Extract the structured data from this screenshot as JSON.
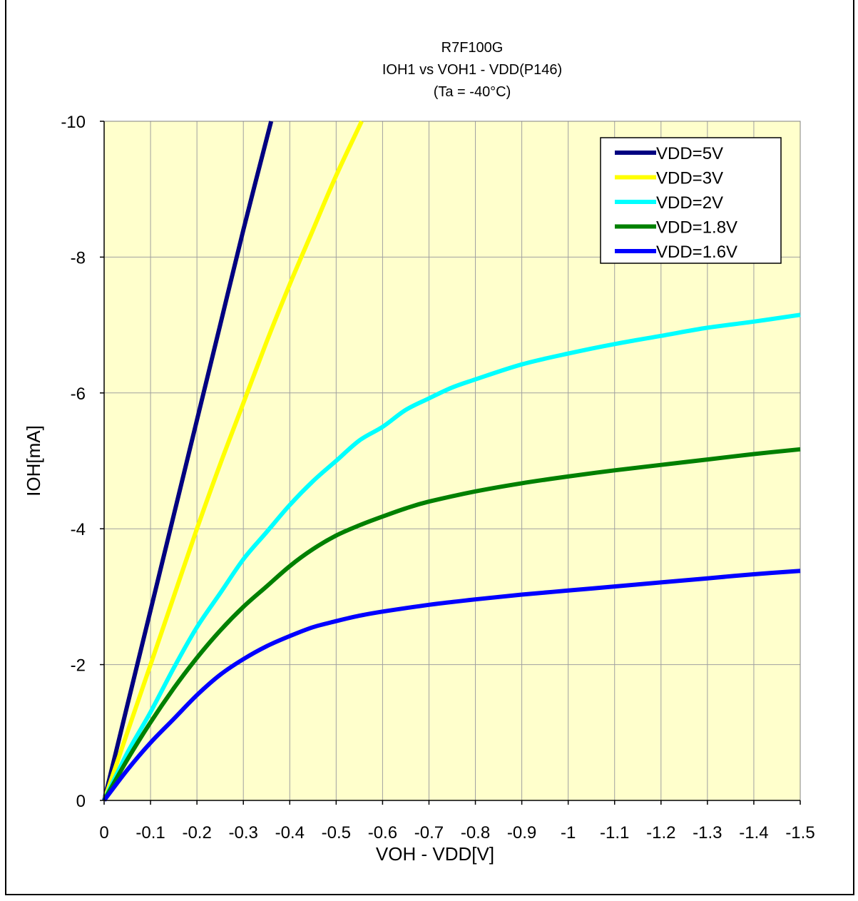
{
  "chart_data": {
    "type": "line",
    "title": "R7F100G",
    "subtitle": "IOH1 vs VOH1  - VDD(P146)",
    "condition": "(Ta =  -40°C)",
    "xlabel": "VOH - VDD[V]",
    "ylabel": "IOH[mA]",
    "xlim": [
      0,
      -1.5
    ],
    "ylim": [
      0,
      -10
    ],
    "xticks": [
      0,
      -0.1,
      -0.2,
      -0.3,
      -0.4,
      -0.5,
      -0.6,
      -0.7,
      -0.8,
      -0.9,
      -1,
      -1.1,
      -1.2,
      -1.3,
      -1.4,
      -1.5
    ],
    "xtick_labels": [
      "0",
      "-0.1",
      "-0.2",
      "-0.3",
      "-0.4",
      "-0.5",
      "-0.6",
      "-0.7",
      "-0.8",
      "-0.9",
      "-1",
      "-1.1",
      "-1.2",
      "-1.3",
      "-1.4",
      "-1.5"
    ],
    "yticks": [
      0,
      -2,
      -4,
      -6,
      -8,
      -10
    ],
    "ytick_labels": [
      "0",
      "-2",
      "-4",
      "-6",
      "-8",
      "-10"
    ],
    "grid": true,
    "legend_position": "top-right",
    "plot_background": "#FFFFCC",
    "series": [
      {
        "name": "VDD=5V",
        "color": "#000080",
        "x": [
          0,
          -0.05,
          -0.1,
          -0.15,
          -0.2,
          -0.25,
          -0.3,
          -0.36
        ],
        "y": [
          0,
          -1.4,
          -2.8,
          -4.2,
          -5.6,
          -7.0,
          -8.4,
          -10.0
        ]
      },
      {
        "name": "VDD=3V",
        "color": "#FFFF00",
        "x": [
          0,
          -0.05,
          -0.1,
          -0.15,
          -0.2,
          -0.25,
          -0.3,
          -0.35,
          -0.4,
          -0.45,
          -0.5,
          -0.555
        ],
        "y": [
          0,
          -1.0,
          -2.0,
          -3.0,
          -4.0,
          -4.95,
          -5.85,
          -6.75,
          -7.6,
          -8.4,
          -9.2,
          -10.0
        ]
      },
      {
        "name": "VDD=2V",
        "color": "#00FFFF",
        "x": [
          0,
          -0.05,
          -0.1,
          -0.15,
          -0.2,
          -0.25,
          -0.3,
          -0.35,
          -0.4,
          -0.45,
          -0.5,
          -0.55,
          -0.6,
          -0.65,
          -0.7,
          -0.75,
          -0.8,
          -0.9,
          -1.0,
          -1.1,
          -1.2,
          -1.3,
          -1.4,
          -1.5
        ],
        "y": [
          0,
          -0.7,
          -1.3,
          -1.95,
          -2.55,
          -3.05,
          -3.55,
          -3.95,
          -4.35,
          -4.7,
          -5.0,
          -5.3,
          -5.5,
          -5.75,
          -5.92,
          -6.08,
          -6.2,
          -6.42,
          -6.58,
          -6.72,
          -6.84,
          -6.96,
          -7.05,
          -7.15
        ]
      },
      {
        "name": "VDD=1.8V",
        "color": "#008000",
        "x": [
          0,
          -0.05,
          -0.1,
          -0.15,
          -0.2,
          -0.25,
          -0.3,
          -0.35,
          -0.4,
          -0.45,
          -0.5,
          -0.55,
          -0.6,
          -0.65,
          -0.7,
          -0.8,
          -0.9,
          -1.0,
          -1.1,
          -1.2,
          -1.3,
          -1.4,
          -1.5
        ],
        "y": [
          0,
          -0.6,
          -1.15,
          -1.65,
          -2.1,
          -2.5,
          -2.85,
          -3.15,
          -3.45,
          -3.7,
          -3.9,
          -4.05,
          -4.18,
          -4.3,
          -4.4,
          -4.55,
          -4.67,
          -4.77,
          -4.86,
          -4.94,
          -5.02,
          -5.1,
          -5.17
        ]
      },
      {
        "name": "VDD=1.6V",
        "color": "#0000FF",
        "x": [
          0,
          -0.05,
          -0.1,
          -0.15,
          -0.2,
          -0.25,
          -0.3,
          -0.35,
          -0.4,
          -0.45,
          -0.5,
          -0.55,
          -0.6,
          -0.7,
          -0.8,
          -0.9,
          -1.0,
          -1.1,
          -1.2,
          -1.3,
          -1.4,
          -1.5
        ],
        "y": [
          0,
          -0.45,
          -0.85,
          -1.2,
          -1.55,
          -1.85,
          -2.08,
          -2.27,
          -2.42,
          -2.55,
          -2.64,
          -2.72,
          -2.78,
          -2.88,
          -2.96,
          -3.03,
          -3.09,
          -3.15,
          -3.21,
          -3.27,
          -3.33,
          -3.38
        ]
      }
    ]
  }
}
